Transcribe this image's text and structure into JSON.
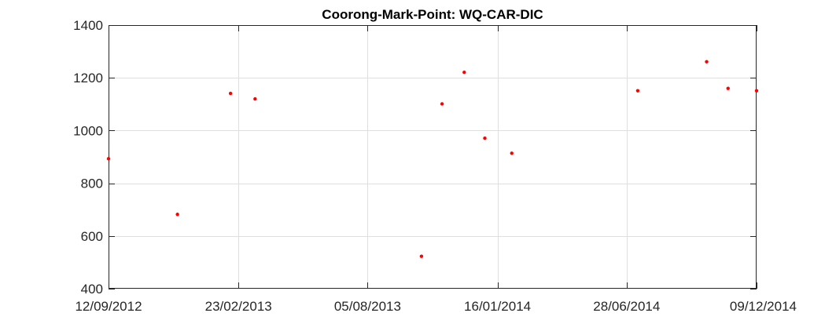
{
  "chart_data": {
    "type": "scatter",
    "title": "Coorong-Mark-Point: WQ-CAR-DIC",
    "xlabel": "",
    "ylabel": "",
    "x_axis_type": "date",
    "xlim": [
      "2012-09-12",
      "2014-12-09"
    ],
    "ylim": [
      400,
      1400
    ],
    "x_ticks": [
      "2012-09-12",
      "2013-02-23",
      "2013-08-05",
      "2014-01-16",
      "2014-06-28",
      "2014-12-09"
    ],
    "x_tick_labels": [
      "12/09/2012",
      "23/02/2013",
      "05/08/2013",
      "16/01/2014",
      "28/06/2014",
      "09/12/2014"
    ],
    "y_ticks": [
      400,
      600,
      800,
      1000,
      1200,
      1400
    ],
    "y_tick_labels": [
      "400",
      "600",
      "800",
      "1000",
      "1200",
      "1400"
    ],
    "grid": true,
    "legend": "none",
    "marker_color": "#ff0000",
    "series": [
      {
        "points": [
          {
            "x": "2012-09-12",
            "y": 893
          },
          {
            "x": "2012-12-08",
            "y": 682
          },
          {
            "x": "2013-02-13",
            "y": 1141
          },
          {
            "x": "2013-03-16",
            "y": 1120
          },
          {
            "x": "2013-10-12",
            "y": 523
          },
          {
            "x": "2013-11-07",
            "y": 1101
          },
          {
            "x": "2013-12-05",
            "y": 1221
          },
          {
            "x": "2013-12-31",
            "y": 971
          },
          {
            "x": "2014-02-03",
            "y": 914
          },
          {
            "x": "2014-07-12",
            "y": 1151
          },
          {
            "x": "2014-10-07",
            "y": 1261
          },
          {
            "x": "2014-11-03",
            "y": 1160
          },
          {
            "x": "2014-12-09",
            "y": 1151
          }
        ]
      }
    ]
  }
}
